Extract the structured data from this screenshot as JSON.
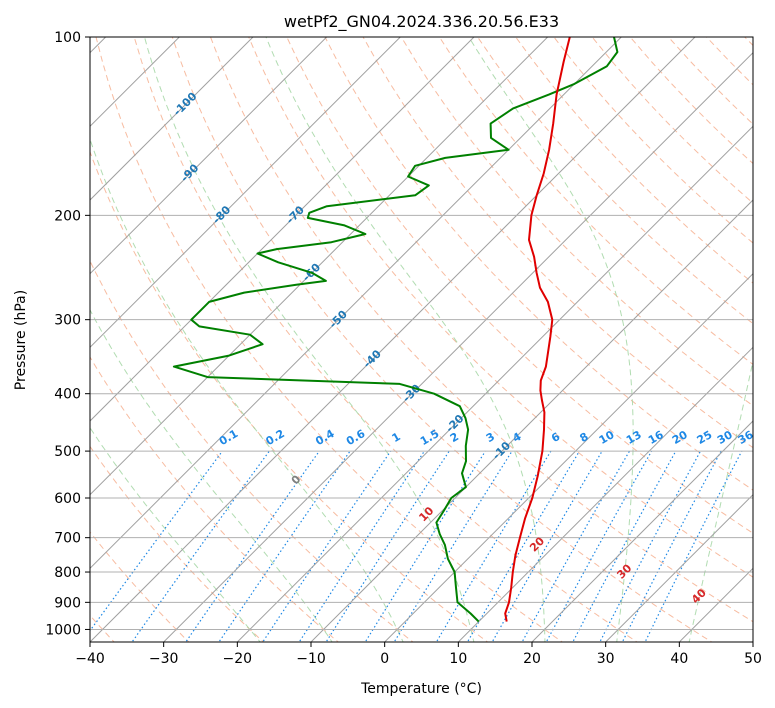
{
  "chart_data": {
    "type": "skew-t log-p",
    "title": "wetPf2_GN04.2024.336.20.56.E33",
    "xlabel": "Temperature (°C)",
    "ylabel": "Pressure (hPa)",
    "xlim": [
      -40,
      50
    ],
    "ylim": [
      1050,
      100
    ],
    "y_scale": "log",
    "grid": true,
    "x_ticks": [
      -40,
      -30,
      -20,
      -10,
      0,
      10,
      20,
      30,
      40,
      50
    ],
    "x_tick_labels": [
      "−40",
      "−30",
      "−20",
      "−10",
      "0",
      "10",
      "20",
      "30",
      "40",
      "50"
    ],
    "y_ticks": [
      100,
      200,
      300,
      400,
      500,
      600,
      700,
      800,
      900,
      1000
    ],
    "y_tick_labels": [
      "100",
      "200",
      "300",
      "400",
      "500",
      "600",
      "700",
      "800",
      "900",
      "1000"
    ],
    "series": [
      {
        "color": "#e00000",
        "pressure": [
          970,
          940,
          900,
          850,
          800,
          750,
          700,
          650,
          600,
          550,
          500,
          460,
          430,
          410,
          395,
          380,
          360,
          340,
          320,
          300,
          280,
          265,
          250,
          235,
          220,
          200,
          185,
          170,
          155,
          140,
          125,
          110,
          100
        ],
        "temperature": [
          13.8,
          12.5,
          11.5,
          9.8,
          7.9,
          6.0,
          4.2,
          2.3,
          0.5,
          -1.8,
          -4.5,
          -7.2,
          -9.5,
          -11.5,
          -13.0,
          -14.3,
          -15.5,
          -17.2,
          -19.0,
          -21.0,
          -24.0,
          -27.0,
          -29.5,
          -32.0,
          -35.0,
          -38.0,
          -40.0,
          -42.0,
          -44.5,
          -47.5,
          -51.0,
          -54.5,
          -57.0
        ]
      },
      {
        "color": "#008000",
        "pressure": [
          970,
          940,
          900,
          850,
          800,
          760,
          720,
          690,
          660,
          630,
          600,
          575,
          545,
          520,
          490,
          460,
          440,
          420,
          400,
          385,
          375,
          360,
          345,
          330,
          318,
          308,
          300,
          290,
          280,
          270,
          262,
          258,
          250,
          240,
          232,
          228,
          222,
          215,
          208,
          202,
          198,
          193,
          185,
          178,
          172,
          165,
          160,
          155,
          148,
          140,
          132,
          125,
          120,
          112,
          106,
          100
        ],
        "dewpoint": [
          10.0,
          7.8,
          4.5,
          2.3,
          0.0,
          -2.7,
          -5.0,
          -7.2,
          -9.2,
          -9.8,
          -10.5,
          -10.0,
          -12.4,
          -13.5,
          -15.6,
          -17.5,
          -19.4,
          -21.8,
          -27.0,
          -33.0,
          -60.0,
          -66.0,
          -60.0,
          -57.0,
          -60.0,
          -68.0,
          -70.0,
          -70.0,
          -70.0,
          -66.5,
          -60.5,
          -57.0,
          -60.0,
          -66.0,
          -70.0,
          -68.0,
          -61.5,
          -58.0,
          -62.0,
          -68.0,
          -68.5,
          -67.0,
          -56.5,
          -56.0,
          -60.0,
          -60.5,
          -57.5,
          -50.0,
          -54.0,
          -56.0,
          -55.0,
          -52.0,
          -50.0,
          -48.0,
          -48.5,
          -51.0
        ]
      }
    ],
    "isotherm_labels": [
      "-100",
      "-90",
      "-80",
      "-70",
      "-60",
      "-50",
      "-40",
      "-30",
      "-20",
      "-10"
    ],
    "isotherm_values": [
      -100,
      -90,
      -80,
      -70,
      -60,
      -50,
      -40,
      -30,
      -20,
      -10
    ],
    "mixing_ratio_labels": [
      "0.1",
      "0.2",
      "0.4",
      "0.6",
      "1",
      "1.5",
      "2",
      "3",
      "4",
      "6",
      "8",
      "10",
      "13",
      "16",
      "20",
      "25",
      "30",
      "36"
    ],
    "mixing_ratio_values": [
      0.1,
      0.2,
      0.4,
      0.6,
      1,
      1.5,
      2,
      3,
      4,
      6,
      8,
      10,
      13,
      16,
      20,
      25,
      30,
      36
    ],
    "moist_adiabat_labels": [
      "0",
      "10",
      "20",
      "30",
      "40"
    ],
    "moist_adiabat_values": [
      0,
      10,
      20,
      30,
      40
    ],
    "colors": {
      "temperature": "#e00000",
      "dewpoint": "#008000",
      "isotherm": "#a0a0a0",
      "isotherm_label": "#1f77b4",
      "dry_adiabat": "#f4a582",
      "moist_adiabat": "#9ed39e",
      "mixing_ratio": "#1e88e5",
      "moist_label_zero": "#808080",
      "moist_label": "#d62728",
      "grid": "#b0b0b0"
    }
  }
}
